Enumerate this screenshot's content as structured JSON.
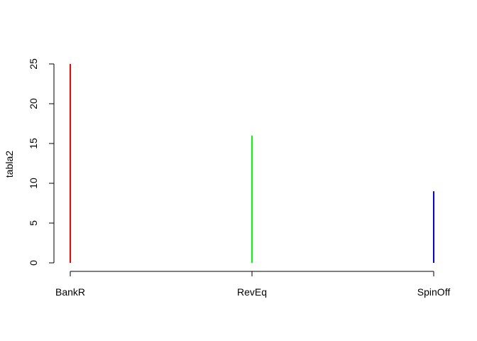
{
  "chart_data": {
    "type": "bar",
    "style": "histogram-lines",
    "title": "",
    "xlabel": "",
    "ylabel": "tabla2",
    "categories": [
      "BankR",
      "RevEq",
      "SpinOff"
    ],
    "values": [
      25,
      16,
      9
    ],
    "colors": [
      "#ff0000",
      "#00ff00",
      "#0000ff"
    ],
    "ylim": [
      0,
      25
    ],
    "yticks": [
      0,
      5,
      10,
      15,
      20,
      25
    ],
    "ytick_labels": [
      "0",
      "5",
      "10",
      "15",
      "20",
      "25"
    ],
    "grid": false,
    "legend": "none"
  }
}
